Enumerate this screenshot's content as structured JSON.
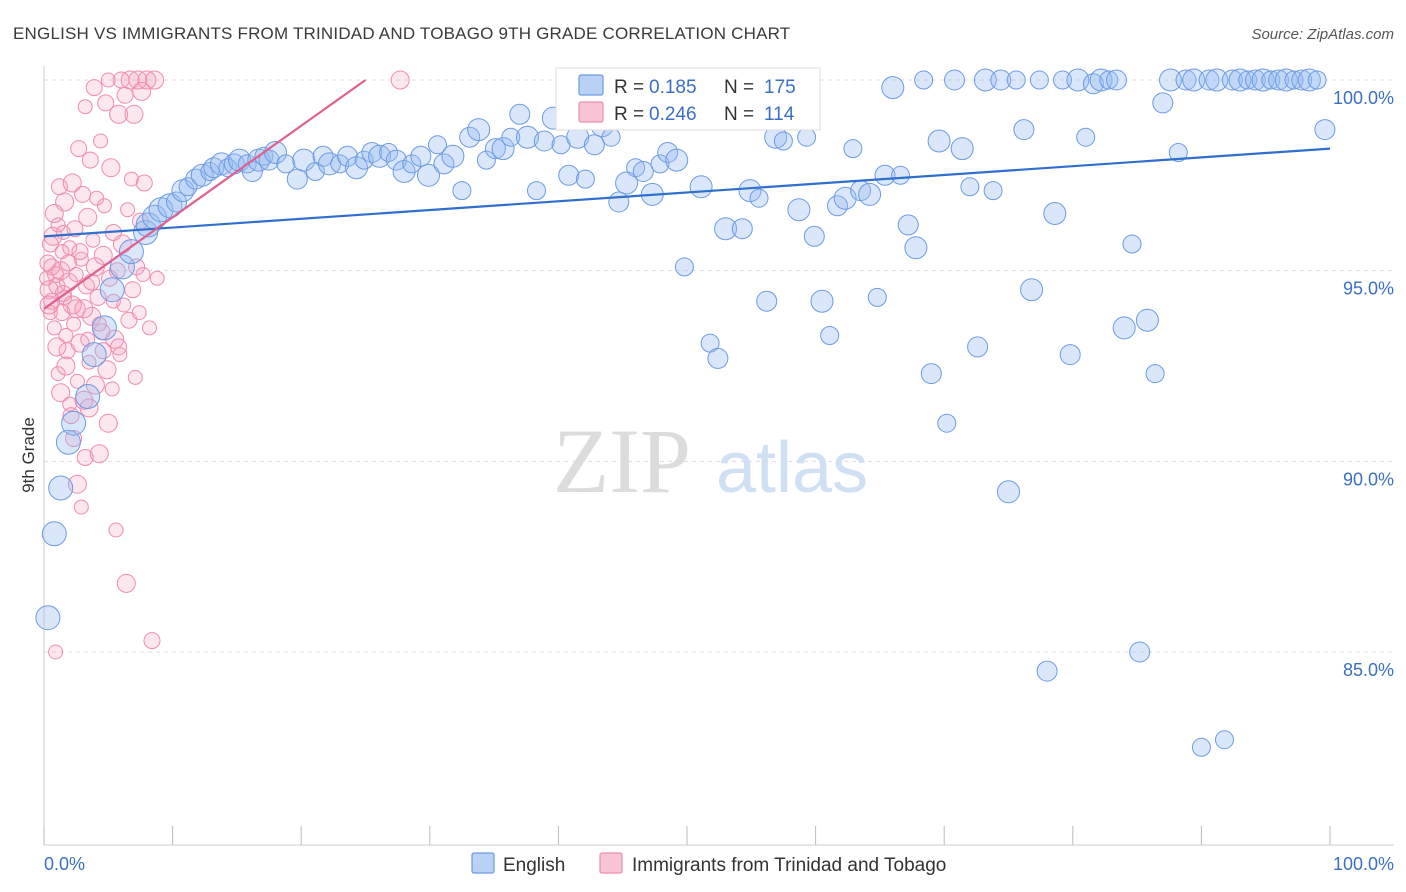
{
  "chart_data": {
    "type": "scatter",
    "title": "ENGLISH VS IMMIGRANTS FROM TRINIDAD AND TOBAGO 9TH GRADE CORRELATION CHART",
    "source": "Source: ZipAtlas.com",
    "ylabel": "9th Grade",
    "xlabel": "",
    "xlim": [
      0,
      100
    ],
    "ylim": [
      80.5,
      100.6
    ],
    "y_ticks": [
      {
        "value": 100,
        "label": "100.0%"
      },
      {
        "value": 95,
        "label": "95.0%"
      },
      {
        "value": 90,
        "label": "90.0%"
      },
      {
        "value": 85,
        "label": "85.0%"
      }
    ],
    "x_tick_labels": {
      "left": "0.0%",
      "right": "100.0%"
    },
    "watermark": {
      "zip": "ZIP",
      "atlas": "atlas"
    },
    "legend": [
      {
        "name": "English",
        "color": "#6c9be3"
      },
      {
        "name": "Immigrants from Trinidad and Tobago",
        "color": "#f08cad"
      }
    ],
    "stats": [
      {
        "r_label": "R =",
        "r_value": "0.185",
        "n_label": "N =",
        "n_value": "175"
      },
      {
        "r_label": "R =",
        "r_value": "0.246",
        "n_label": "N =",
        "n_value": "114"
      }
    ],
    "series": [
      {
        "name": "English",
        "color": "#6c9be3",
        "trend": {
          "x": [
            0,
            100
          ],
          "y": [
            95.9,
            98.2
          ],
          "color": "#2f6fcd"
        },
        "points": [
          [
            0.3,
            85.9
          ],
          [
            0.8,
            88.1
          ],
          [
            1.3,
            89.3
          ],
          [
            1.9,
            90.5
          ],
          [
            2.3,
            91.0
          ],
          [
            3.4,
            91.7
          ],
          [
            3.9,
            92.8
          ],
          [
            4.7,
            93.5
          ],
          [
            5.3,
            94.5
          ],
          [
            6.1,
            95.1
          ],
          [
            6.8,
            95.5
          ],
          [
            7.9,
            96.0
          ],
          [
            8.1,
            96.2
          ],
          [
            8.6,
            96.4
          ],
          [
            9.1,
            96.6
          ],
          [
            9.8,
            96.7
          ],
          [
            10.3,
            96.8
          ],
          [
            10.8,
            97.1
          ],
          [
            11.2,
            97.2
          ],
          [
            11.8,
            97.4
          ],
          [
            12.3,
            97.5
          ],
          [
            12.9,
            97.6
          ],
          [
            13.2,
            97.7
          ],
          [
            13.8,
            97.8
          ],
          [
            14.3,
            97.7
          ],
          [
            14.8,
            97.8
          ],
          [
            15.2,
            97.9
          ],
          [
            15.8,
            97.8
          ],
          [
            16.2,
            97.6
          ],
          [
            16.7,
            97.9
          ],
          [
            17.1,
            98.0
          ],
          [
            17.5,
            97.9
          ],
          [
            18.0,
            98.1
          ],
          [
            18.8,
            97.8
          ],
          [
            19.7,
            97.4
          ],
          [
            20.2,
            97.9
          ],
          [
            21.1,
            97.6
          ],
          [
            21.7,
            98.0
          ],
          [
            22.2,
            97.8
          ],
          [
            23.0,
            97.8
          ],
          [
            23.6,
            98.0
          ],
          [
            24.3,
            97.7
          ],
          [
            24.9,
            97.9
          ],
          [
            25.5,
            98.1
          ],
          [
            26.1,
            98.0
          ],
          [
            26.8,
            98.1
          ],
          [
            27.4,
            97.9
          ],
          [
            28.0,
            97.6
          ],
          [
            28.6,
            97.8
          ],
          [
            29.3,
            98.0
          ],
          [
            29.9,
            97.5
          ],
          [
            30.6,
            98.3
          ],
          [
            31.1,
            97.8
          ],
          [
            31.8,
            98.0
          ],
          [
            32.5,
            97.1
          ],
          [
            33.1,
            98.5
          ],
          [
            33.8,
            98.7
          ],
          [
            34.4,
            97.9
          ],
          [
            35.1,
            98.2
          ],
          [
            35.7,
            98.2
          ],
          [
            36.3,
            98.5
          ],
          [
            37.0,
            99.1
          ],
          [
            37.6,
            98.5
          ],
          [
            38.3,
            97.1
          ],
          [
            38.9,
            98.4
          ],
          [
            39.6,
            99.0
          ],
          [
            40.2,
            98.3
          ],
          [
            40.8,
            97.5
          ],
          [
            41.5,
            98.5
          ],
          [
            42.1,
            97.4
          ],
          [
            42.8,
            98.3
          ],
          [
            43.4,
            98.8
          ],
          [
            44.1,
            98.5
          ],
          [
            44.7,
            96.8
          ],
          [
            45.3,
            97.3
          ],
          [
            46.0,
            97.7
          ],
          [
            46.6,
            97.6
          ],
          [
            47.3,
            97.0
          ],
          [
            47.9,
            97.8
          ],
          [
            48.5,
            98.1
          ],
          [
            49.2,
            97.9
          ],
          [
            49.8,
            95.1
          ],
          [
            50.5,
            100.0
          ],
          [
            51.1,
            97.2
          ],
          [
            51.8,
            93.1
          ],
          [
            52.4,
            92.7
          ],
          [
            53.0,
            96.1
          ],
          [
            53.7,
            99.5
          ],
          [
            54.3,
            96.1
          ],
          [
            54.9,
            97.1
          ],
          [
            55.6,
            96.9
          ],
          [
            56.2,
            94.2
          ],
          [
            56.9,
            98.5
          ],
          [
            57.5,
            98.4
          ],
          [
            58.1,
            99.1
          ],
          [
            58.7,
            96.6
          ],
          [
            59.3,
            98.5
          ],
          [
            59.9,
            95.9
          ],
          [
            60.5,
            94.2
          ],
          [
            61.1,
            93.3
          ],
          [
            61.7,
            96.7
          ],
          [
            62.3,
            96.9
          ],
          [
            62.9,
            98.2
          ],
          [
            63.5,
            97.1
          ],
          [
            64.2,
            97.0
          ],
          [
            64.8,
            94.3
          ],
          [
            65.4,
            97.5
          ],
          [
            66.0,
            99.8
          ],
          [
            66.6,
            97.5
          ],
          [
            67.2,
            96.2
          ],
          [
            67.8,
            95.6
          ],
          [
            68.4,
            100.0
          ],
          [
            69.0,
            92.3
          ],
          [
            69.6,
            98.4
          ],
          [
            70.2,
            91.0
          ],
          [
            70.8,
            100.0
          ],
          [
            71.4,
            98.2
          ],
          [
            72.0,
            97.2
          ],
          [
            72.6,
            93.0
          ],
          [
            73.2,
            100.0
          ],
          [
            73.8,
            97.1
          ],
          [
            74.4,
            100.0
          ],
          [
            75.0,
            89.2
          ],
          [
            75.6,
            100.0
          ],
          [
            76.2,
            98.7
          ],
          [
            76.8,
            94.5
          ],
          [
            77.4,
            100.0
          ],
          [
            78.0,
            84.5
          ],
          [
            78.6,
            96.5
          ],
          [
            79.2,
            100.0
          ],
          [
            79.8,
            92.8
          ],
          [
            80.4,
            100.0
          ],
          [
            81.0,
            98.5
          ],
          [
            81.6,
            99.9
          ],
          [
            82.2,
            100.0
          ],
          [
            82.8,
            100.0
          ],
          [
            83.4,
            100.0
          ],
          [
            84.0,
            93.5
          ],
          [
            84.6,
            95.7
          ],
          [
            85.2,
            85.0
          ],
          [
            85.8,
            93.7
          ],
          [
            86.4,
            92.3
          ],
          [
            87.0,
            99.4
          ],
          [
            87.6,
            100.0
          ],
          [
            88.2,
            98.1
          ],
          [
            88.8,
            100.0
          ],
          [
            89.4,
            100.0
          ],
          [
            90.0,
            82.5
          ],
          [
            90.6,
            100.0
          ],
          [
            91.2,
            100.0
          ],
          [
            91.8,
            82.7
          ],
          [
            92.4,
            100.0
          ],
          [
            93.0,
            100.0
          ],
          [
            93.6,
            100.0
          ],
          [
            94.2,
            100.0
          ],
          [
            94.8,
            100.0
          ],
          [
            95.4,
            100.0
          ],
          [
            96.0,
            100.0
          ],
          [
            96.6,
            100.0
          ],
          [
            97.2,
            100.0
          ],
          [
            97.8,
            100.0
          ],
          [
            98.4,
            100.0
          ],
          [
            99.0,
            100.0
          ],
          [
            99.6,
            98.7
          ]
        ]
      },
      {
        "name": "Immigrants from Trinidad and Tobago",
        "color": "#f08cad",
        "trend": {
          "x": [
            0,
            25
          ],
          "y": [
            94.0,
            100.0
          ],
          "color": "#e0608f"
        },
        "points": [
          [
            0.2,
            94.8
          ],
          [
            0.3,
            95.2
          ],
          [
            0.4,
            94.5
          ],
          [
            0.5,
            93.9
          ],
          [
            0.6,
            94.2
          ],
          [
            0.7,
            95.9
          ],
          [
            0.8,
            93.5
          ],
          [
            0.9,
            94.9
          ],
          [
            1.0,
            93.0
          ],
          [
            1.1,
            92.3
          ],
          [
            1.2,
            97.2
          ],
          [
            1.3,
            91.8
          ],
          [
            1.4,
            95.5
          ],
          [
            1.5,
            94.4
          ],
          [
            1.6,
            96.8
          ],
          [
            1.7,
            93.3
          ],
          [
            1.8,
            92.9
          ],
          [
            1.9,
            94.7
          ],
          [
            2.0,
            95.6
          ],
          [
            2.1,
            91.2
          ],
          [
            2.2,
            97.3
          ],
          [
            2.3,
            93.6
          ],
          [
            2.4,
            96.1
          ],
          [
            2.5,
            94.0
          ],
          [
            2.6,
            92.1
          ],
          [
            2.7,
            98.2
          ],
          [
            2.8,
            93.1
          ],
          [
            2.9,
            95.3
          ],
          [
            3.0,
            97.0
          ],
          [
            3.1,
            91.6
          ],
          [
            3.2,
            99.3
          ],
          [
            3.3,
            94.6
          ],
          [
            3.4,
            96.4
          ],
          [
            3.5,
            92.6
          ],
          [
            3.6,
            97.9
          ],
          [
            3.7,
            93.8
          ],
          [
            3.8,
            95.8
          ],
          [
            3.9,
            99.8
          ],
          [
            4.0,
            92.0
          ],
          [
            4.1,
            96.9
          ],
          [
            4.2,
            94.3
          ],
          [
            4.3,
            90.2
          ],
          [
            4.4,
            98.4
          ],
          [
            4.5,
            93.4
          ],
          [
            4.6,
            95.4
          ],
          [
            4.7,
            96.7
          ],
          [
            4.8,
            99.4
          ],
          [
            4.9,
            92.4
          ],
          [
            5.0,
            100.0
          ],
          [
            5.1,
            94.8
          ],
          [
            5.2,
            97.7
          ],
          [
            5.3,
            91.9
          ],
          [
            5.4,
            96.0
          ],
          [
            5.5,
            93.2
          ],
          [
            5.6,
            88.2
          ],
          [
            5.7,
            95.0
          ],
          [
            5.8,
            99.1
          ],
          [
            5.9,
            92.8
          ],
          [
            6.0,
            100.0
          ],
          [
            6.1,
            95.7
          ],
          [
            6.2,
            94.1
          ],
          [
            6.3,
            99.6
          ],
          [
            6.4,
            86.8
          ],
          [
            6.5,
            96.6
          ],
          [
            6.6,
            93.7
          ],
          [
            6.7,
            100.0
          ],
          [
            6.8,
            97.4
          ],
          [
            6.9,
            94.5
          ],
          [
            7.0,
            99.1
          ],
          [
            7.1,
            92.2
          ],
          [
            7.2,
            95.1
          ],
          [
            7.3,
            100.0
          ],
          [
            7.4,
            93.9
          ],
          [
            7.5,
            96.3
          ],
          [
            7.6,
            99.7
          ],
          [
            7.7,
            94.9
          ],
          [
            7.8,
            97.3
          ],
          [
            8.0,
            100.0
          ],
          [
            8.2,
            93.5
          ],
          [
            8.4,
            85.3
          ],
          [
            8.6,
            100.0
          ],
          [
            8.8,
            94.8
          ],
          [
            1.0,
            94.6
          ],
          [
            1.3,
            95.0
          ],
          [
            1.6,
            94.3
          ],
          [
            1.9,
            95.2
          ],
          [
            2.2,
            94.1
          ],
          [
            2.5,
            94.9
          ],
          [
            2.8,
            95.5
          ],
          [
            3.1,
            94.0
          ],
          [
            3.4,
            93.2
          ],
          [
            3.7,
            94.7
          ],
          [
            4.0,
            95.1
          ],
          [
            4.3,
            93.6
          ],
          [
            0.5,
            95.7
          ],
          [
            0.8,
            96.5
          ],
          [
            1.1,
            96.2
          ],
          [
            1.4,
            93.9
          ],
          [
            1.7,
            92.5
          ],
          [
            2.0,
            91.5
          ],
          [
            2.3,
            90.6
          ],
          [
            2.6,
            89.4
          ],
          [
            2.9,
            88.8
          ],
          [
            3.2,
            90.1
          ],
          [
            3.5,
            91.4
          ],
          [
            0.9,
            85.0
          ],
          [
            4.6,
            92.9
          ],
          [
            5.0,
            91.0
          ],
          [
            5.4,
            94.2
          ],
          [
            5.8,
            93.0
          ],
          [
            27.7,
            100.0
          ],
          [
            1.5,
            96.0
          ],
          [
            0.6,
            95.1
          ],
          [
            0.4,
            94.1
          ]
        ]
      }
    ]
  }
}
